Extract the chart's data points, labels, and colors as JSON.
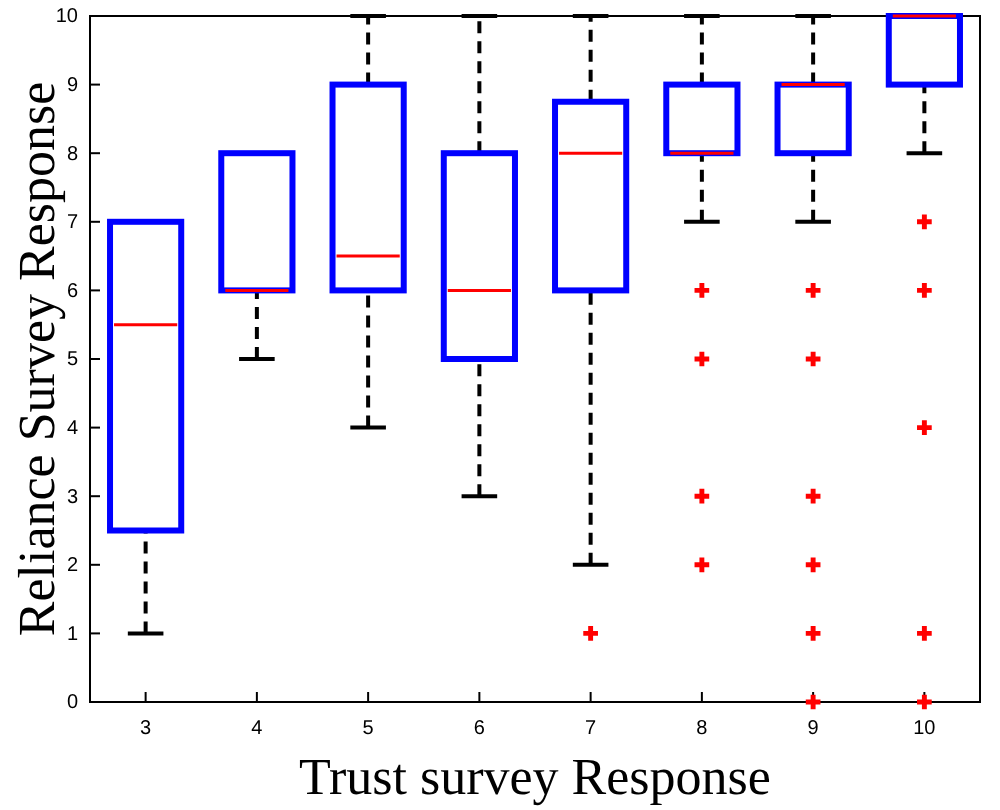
{
  "chart_data": {
    "type": "box",
    "xlabel": "Trust survey Response",
    "ylabel": "Reliance Survey Response",
    "categories": [
      "3",
      "4",
      "5",
      "6",
      "7",
      "8",
      "9",
      "10"
    ],
    "boxes": [
      {
        "low": 1,
        "q1": 2.5,
        "median": 5.5,
        "q3": 7,
        "high": 7
      },
      {
        "low": 5,
        "q1": 6,
        "median": 6,
        "q3": 8,
        "high": 8
      },
      {
        "low": 4,
        "q1": 6,
        "median": 6.5,
        "q3": 9,
        "high": 10
      },
      {
        "low": 3,
        "q1": 5,
        "median": 6,
        "q3": 8,
        "high": 10
      },
      {
        "low": 2,
        "q1": 6,
        "median": 8,
        "q3": 8.75,
        "high": 10,
        "outliers": [
          1
        ]
      },
      {
        "low": 7,
        "q1": 8,
        "median": 8,
        "q3": 9,
        "high": 10,
        "outliers": [
          6,
          5,
          3,
          2
        ]
      },
      {
        "low": 7,
        "q1": 8,
        "median": 9,
        "q3": 9,
        "high": 10,
        "outliers": [
          6,
          5,
          3,
          2,
          1,
          0
        ]
      },
      {
        "low": 8,
        "q1": 9,
        "median": 10,
        "q3": 10,
        "high": 10,
        "outliers": [
          7,
          6,
          4,
          1,
          0
        ]
      }
    ],
    "color": "#0000ff",
    "marker": "cross",
    "ylim": [
      0,
      10
    ],
    "yticks": [
      0,
      1,
      2,
      3,
      4,
      5,
      6,
      7,
      8,
      9,
      10
    ],
    "grid": false
  }
}
